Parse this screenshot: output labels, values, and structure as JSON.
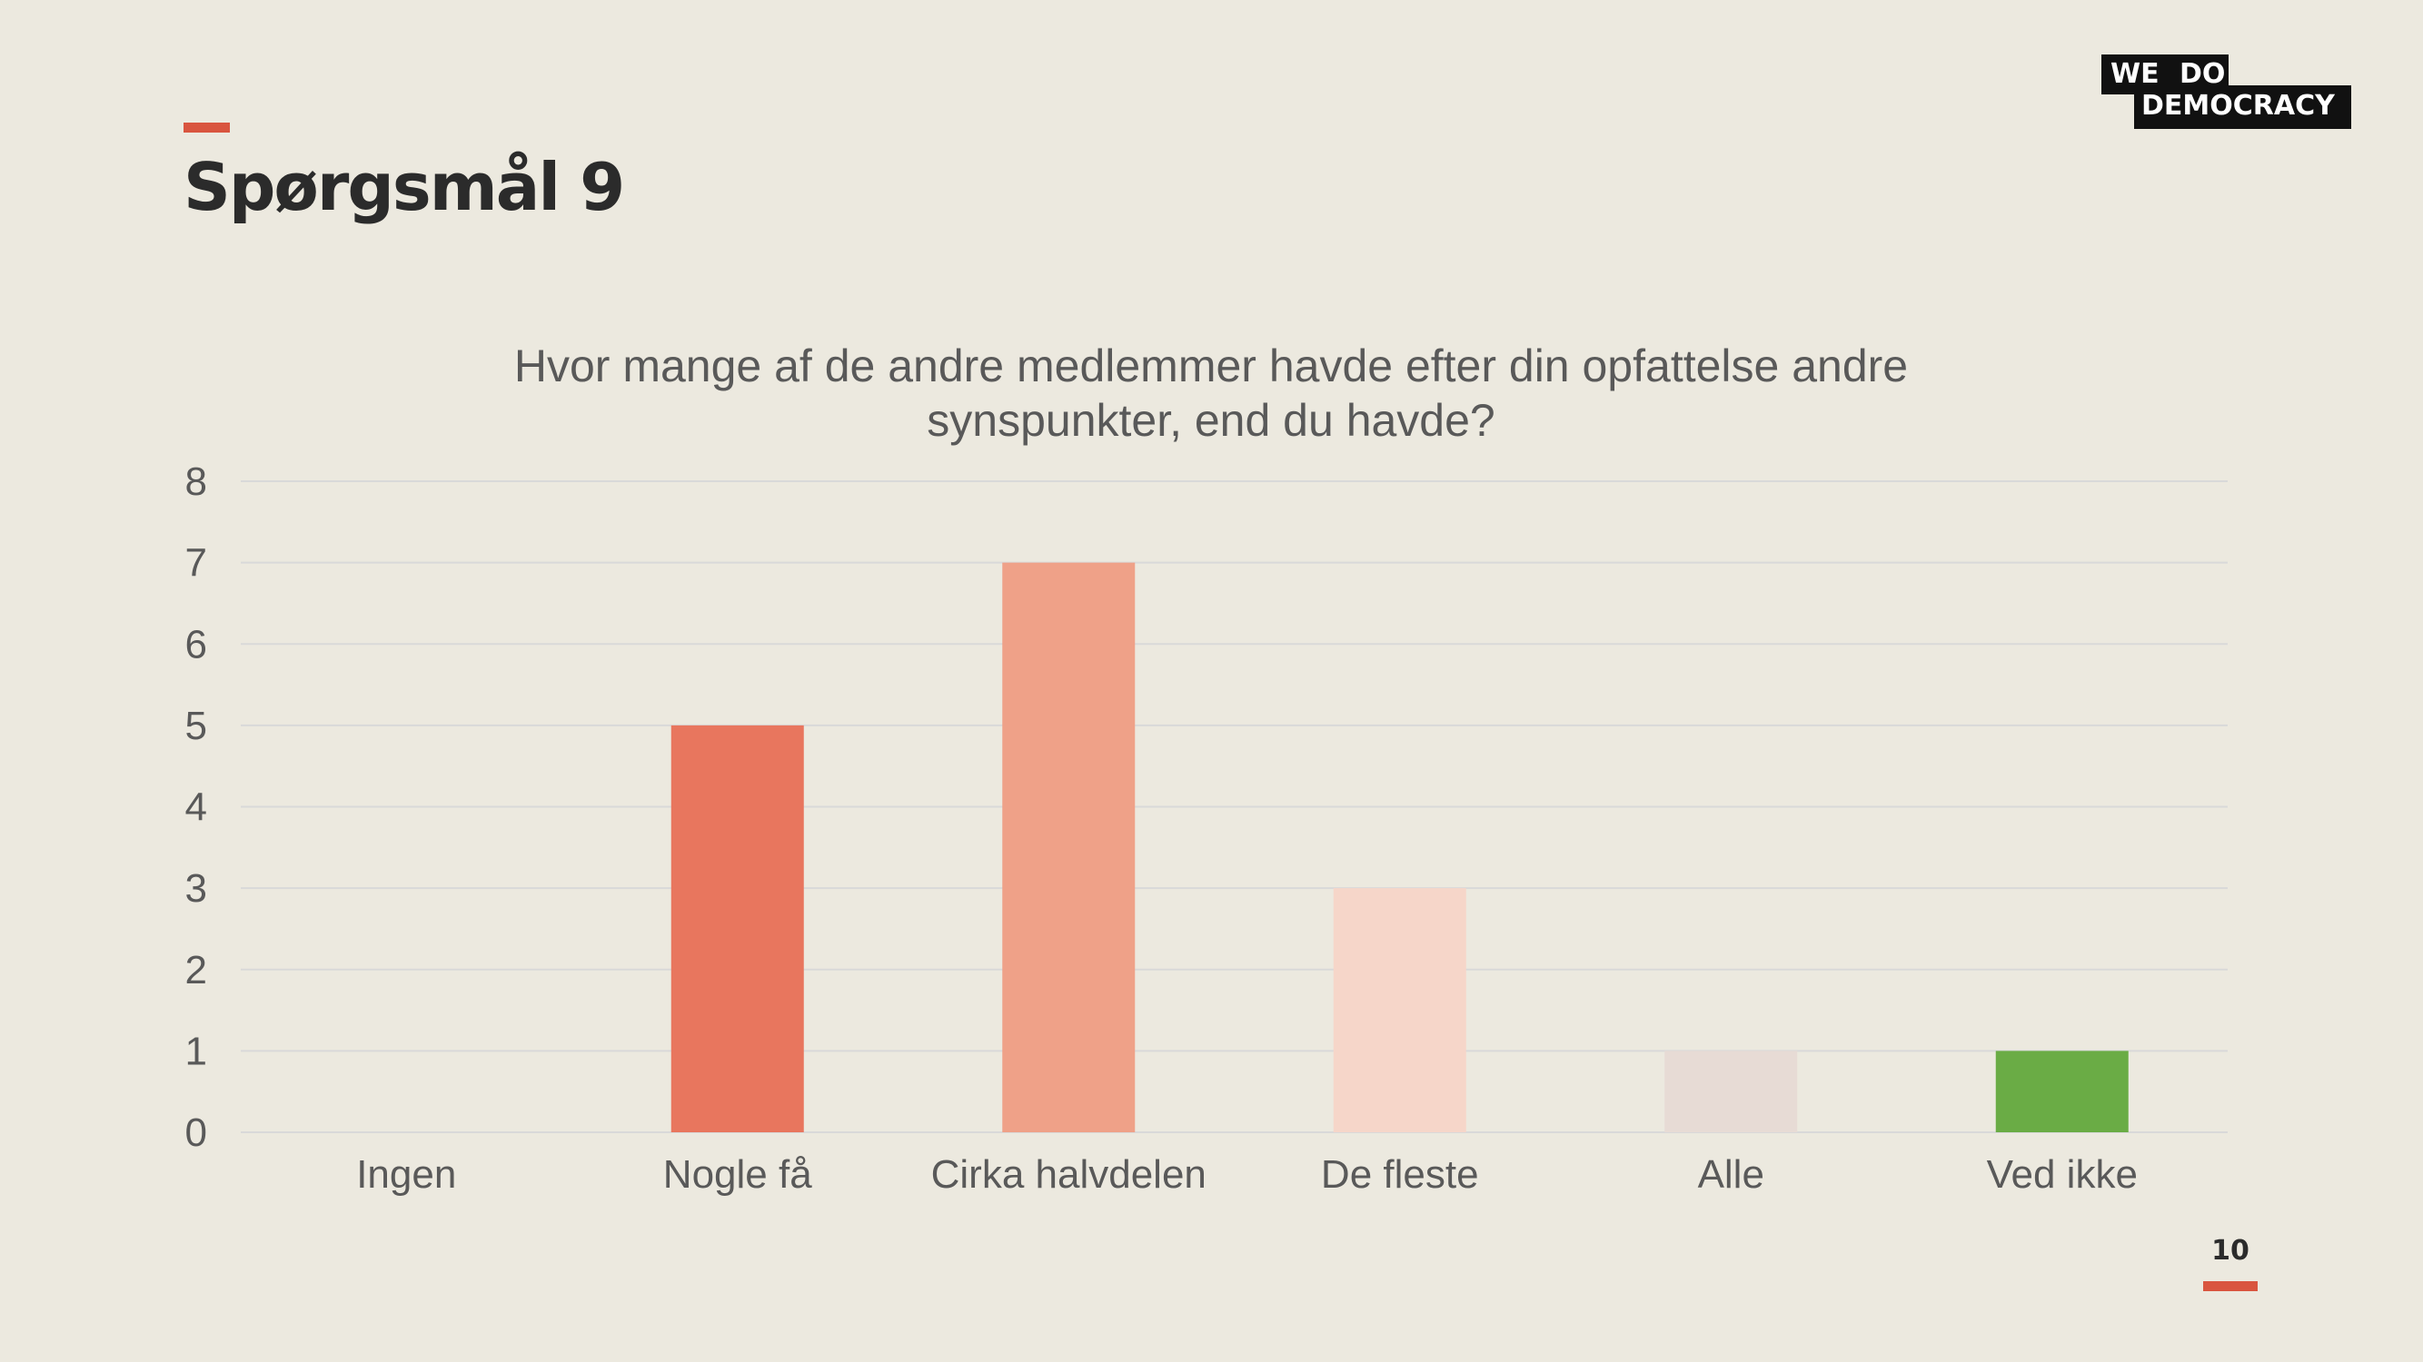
{
  "slide": {
    "title": "Spørgsmål 9",
    "page_number": "10"
  },
  "logo": {
    "line1": "WE DO",
    "line2": "DEMOCRACY"
  },
  "colors": {
    "background": "#ece9df",
    "accent": "#d9553f",
    "text": "#2b2b2b",
    "axis_text": "#595959",
    "gridline": "#d9d9d9"
  },
  "chart_data": {
    "type": "bar",
    "title": "Hvor mange af de andre medlemmer havde efter din opfattelse andre synspunkter, end du havde?",
    "title_lines": [
      "Hvor mange af de andre medlemmer havde efter din opfattelse andre",
      "synspunkter, end du havde?"
    ],
    "categories": [
      "Ingen",
      "Nogle få",
      "Cirka halvdelen",
      "De fleste",
      "Alle",
      "Ved ikke"
    ],
    "values": [
      0,
      5,
      7,
      3,
      1,
      1
    ],
    "bar_colors": [
      "#e8765e",
      "#e8765e",
      "#efa188",
      "#f6d6c9",
      "#e7dbd5",
      "#6aac45"
    ],
    "ylim": [
      0,
      8
    ],
    "yticks": [
      0,
      1,
      2,
      3,
      4,
      5,
      6,
      7,
      8
    ],
    "xlabel": "",
    "ylabel": "",
    "grid": true,
    "legend": false
  }
}
